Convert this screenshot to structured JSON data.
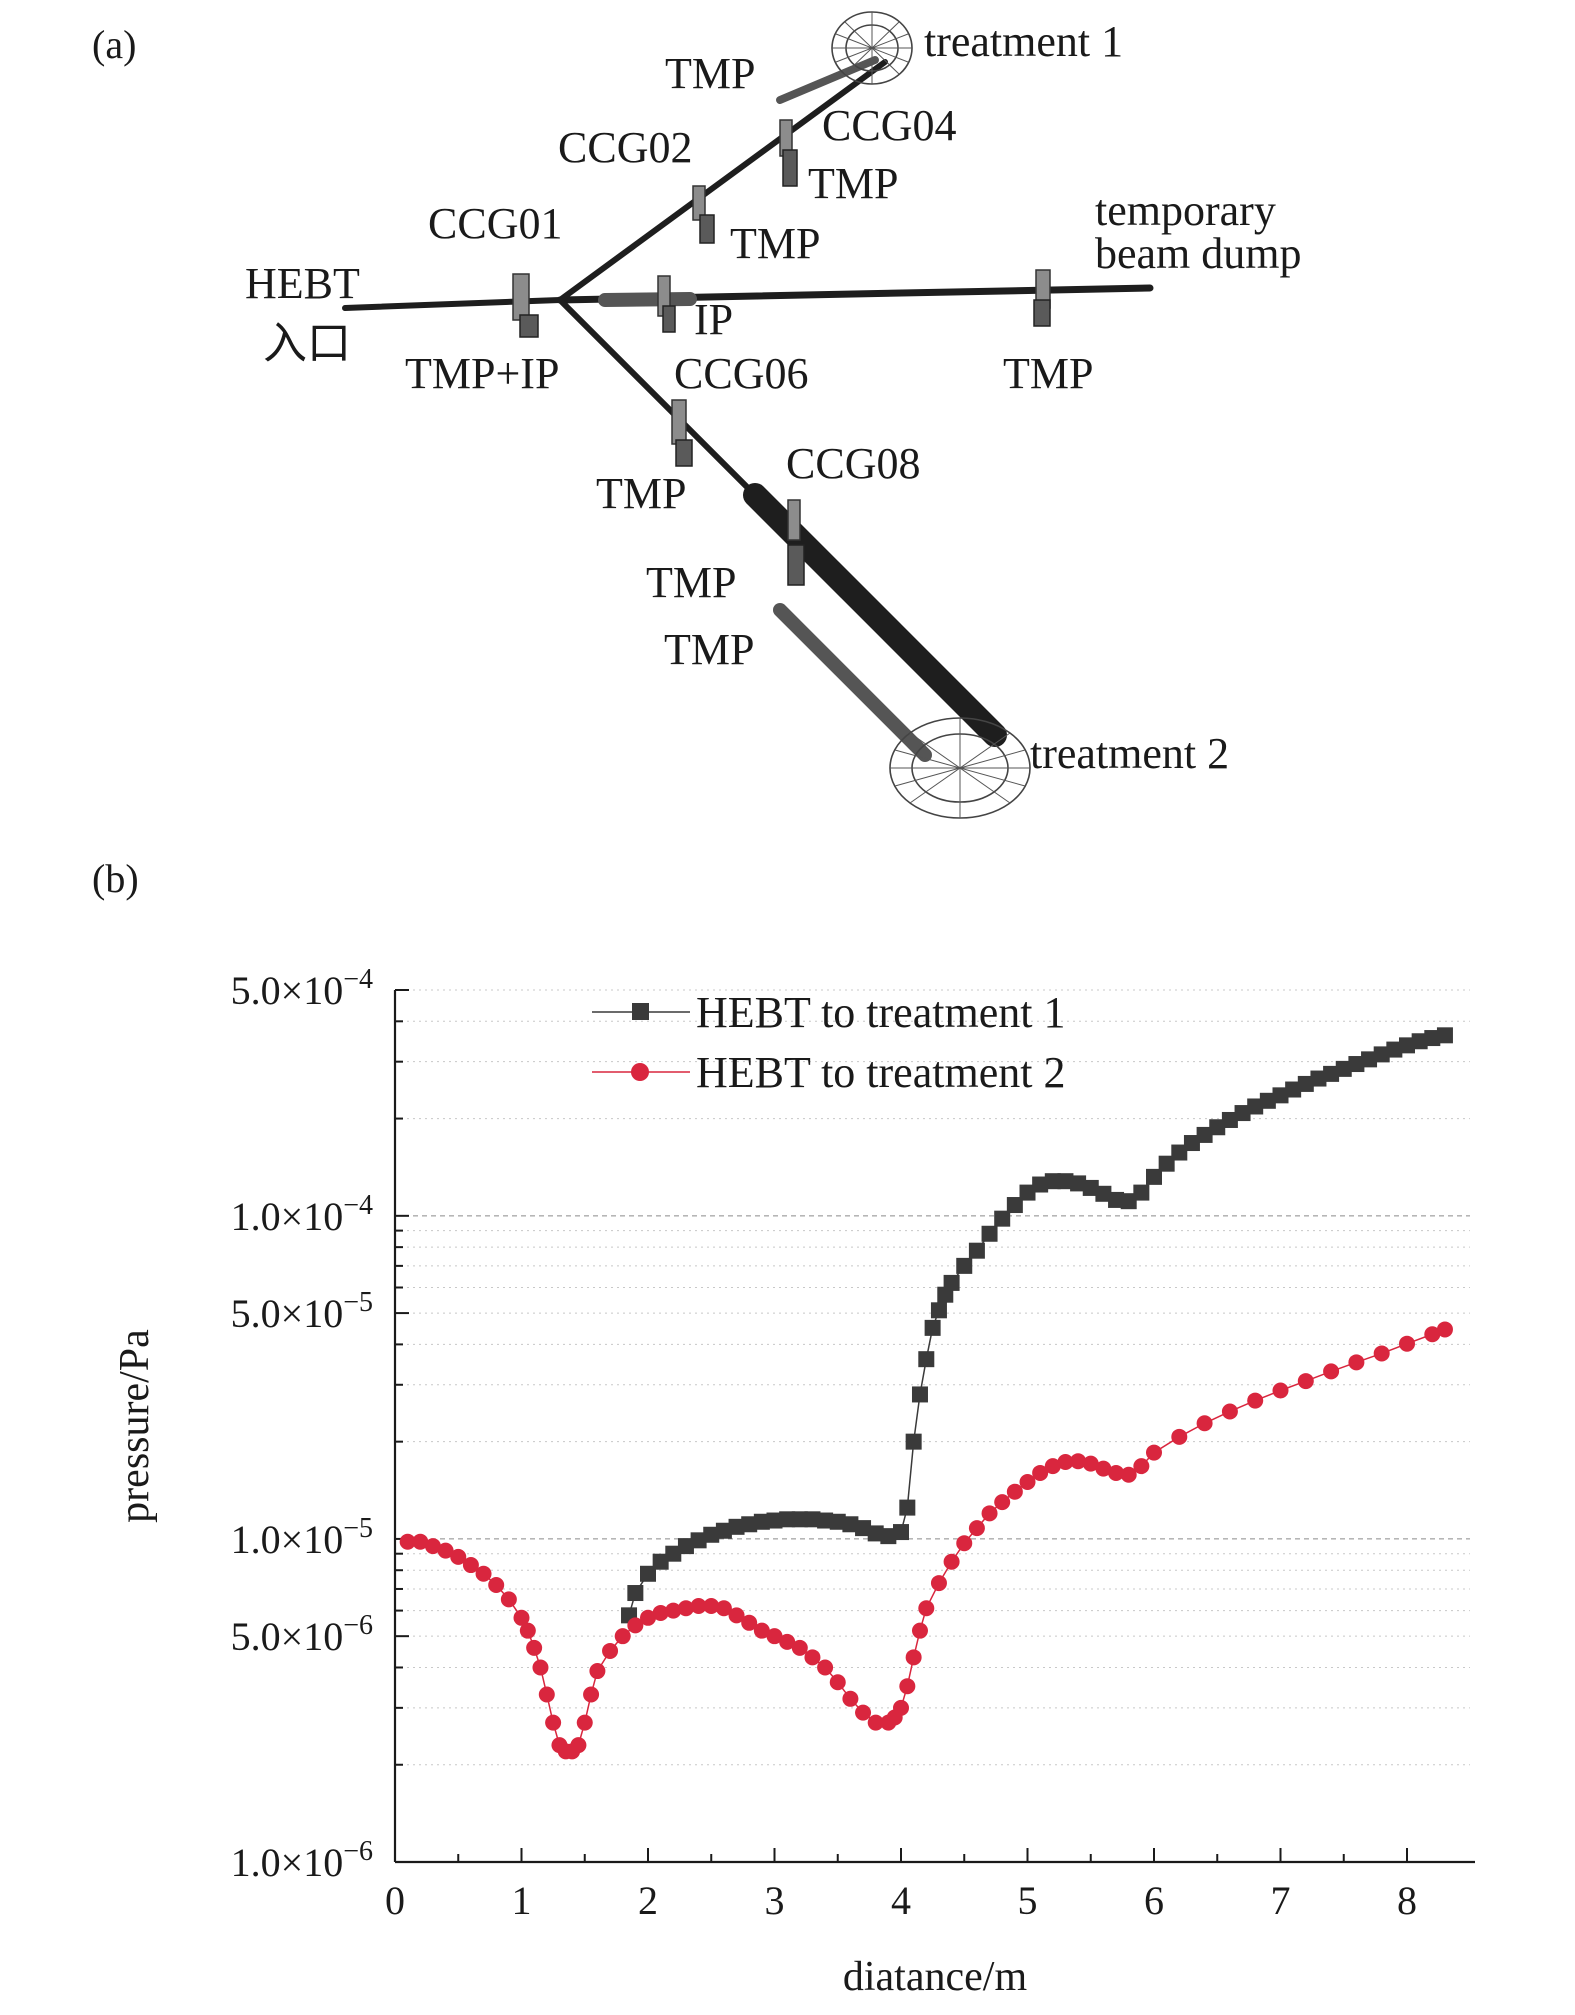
{
  "panel_a": {
    "letter": "(a)",
    "labels": {
      "treatment1": "treatment 1",
      "tmp_t1": "TMP",
      "ccg04": "CCG04",
      "ccg02": "CCG02",
      "tmp_ccg04": "TMP",
      "ccg01": "CCG01",
      "tmp_ccg02": "TMP",
      "temporary": "temporary",
      "beam_dump": "beam dump",
      "hebt": "HEBT",
      "entrance": "入口",
      "ip": "IP",
      "tmp_ip": "TMP+IP",
      "ccg06": "CCG06",
      "tmp_dump": "TMP",
      "tmp_ccg06": "TMP",
      "ccg08": "CCG08",
      "tmp_ccg08": "TMP",
      "tmp_t2": "TMP",
      "treatment2": "treatment 2"
    }
  },
  "panel_b": {
    "letter": "(b)"
  },
  "chart_data": {
    "type": "scatter",
    "title": "",
    "xlabel": "diatance/m",
    "ylabel": "pressure/Pa",
    "x_ticks": [
      "0",
      "1",
      "2",
      "3",
      "4",
      "5",
      "6",
      "7",
      "8"
    ],
    "y_ticks": [
      {
        "value": 1e-06,
        "label": "1.0×10",
        "exp": "−6"
      },
      {
        "value": 5e-06,
        "label": "5.0×10",
        "exp": "−6"
      },
      {
        "value": 1e-05,
        "label": "1.0×10",
        "exp": "−5"
      },
      {
        "value": 5e-05,
        "label": "5.0×10",
        "exp": "−5"
      },
      {
        "value": 0.0001,
        "label": "1.0×10",
        "exp": "−4"
      },
      {
        "value": 0.0005,
        "label": "5.0×10",
        "exp": "−4"
      }
    ],
    "xlim": [
      0,
      8.5
    ],
    "ylim": [
      1e-06,
      0.0005
    ],
    "yscale": "log",
    "grid": "dashed horizontal at 1e-5 and 1e-4, dotted minor",
    "legend_position": "top-center",
    "series": [
      {
        "name": "HEBT to treatment 1",
        "color": "#3a3a3a",
        "marker": "square",
        "x": [
          1.85,
          1.9,
          2.0,
          2.1,
          2.2,
          2.3,
          2.4,
          2.5,
          2.6,
          2.7,
          2.8,
          2.9,
          3.0,
          3.1,
          3.2,
          3.3,
          3.4,
          3.5,
          3.6,
          3.7,
          3.8,
          3.9,
          4.0,
          4.05,
          4.1,
          4.15,
          4.2,
          4.25,
          4.3,
          4.35,
          4.4,
          4.5,
          4.6,
          4.7,
          4.8,
          4.9,
          5.0,
          5.1,
          5.2,
          5.3,
          5.4,
          5.5,
          5.6,
          5.7,
          5.8,
          5.9,
          6.0,
          6.1,
          6.2,
          6.3,
          6.4,
          6.5,
          6.6,
          6.7,
          6.8,
          6.9,
          7.0,
          7.1,
          7.2,
          7.3,
          7.4,
          7.5,
          7.6,
          7.7,
          7.8,
          7.9,
          8.0,
          8.1,
          8.2,
          8.3
        ],
        "y": [
          5.8e-06,
          6.8e-06,
          7.8e-06,
          8.5e-06,
          9e-06,
          9.5e-06,
          9.9e-06,
          1.03e-05,
          1.06e-05,
          1.09e-05,
          1.11e-05,
          1.13e-05,
          1.14e-05,
          1.15e-05,
          1.15e-05,
          1.15e-05,
          1.14e-05,
          1.13e-05,
          1.11e-05,
          1.08e-05,
          1.04e-05,
          1.02e-05,
          1.05e-05,
          1.25e-05,
          2e-05,
          2.8e-05,
          3.6e-05,
          4.5e-05,
          5.1e-05,
          5.7e-05,
          6.2e-05,
          7e-05,
          7.8e-05,
          8.8e-05,
          9.8e-05,
          0.000108,
          0.000118,
          0.000125,
          0.000128,
          0.000128,
          0.000126,
          0.000122,
          0.000117,
          0.000112,
          0.000111,
          0.000118,
          0.000132,
          0.000145,
          0.000157,
          0.000168,
          0.000178,
          0.000188,
          0.000198,
          0.000208,
          0.000218,
          0.000227,
          0.000236,
          0.000246,
          0.000256,
          0.000266,
          0.000275,
          0.000285,
          0.000295,
          0.000305,
          0.000316,
          0.000327,
          0.000337,
          0.000347,
          0.000355,
          0.000362
        ]
      },
      {
        "name": "HEBT to treatment 2",
        "color": "#d9263e",
        "marker": "circle",
        "x": [
          0.1,
          0.2,
          0.3,
          0.4,
          0.5,
          0.6,
          0.7,
          0.8,
          0.9,
          1.0,
          1.05,
          1.1,
          1.15,
          1.2,
          1.25,
          1.3,
          1.35,
          1.4,
          1.45,
          1.5,
          1.55,
          1.6,
          1.7,
          1.8,
          1.9,
          2.0,
          2.1,
          2.2,
          2.3,
          2.4,
          2.5,
          2.6,
          2.7,
          2.8,
          2.9,
          3.0,
          3.1,
          3.2,
          3.3,
          3.4,
          3.5,
          3.6,
          3.7,
          3.8,
          3.9,
          3.95,
          4.0,
          4.05,
          4.1,
          4.15,
          4.2,
          4.3,
          4.4,
          4.5,
          4.6,
          4.7,
          4.8,
          4.9,
          5.0,
          5.1,
          5.2,
          5.3,
          5.4,
          5.5,
          5.6,
          5.7,
          5.8,
          5.9,
          6.0,
          6.2,
          6.4,
          6.6,
          6.8,
          7.0,
          7.2,
          7.4,
          7.6,
          7.8,
          8.0,
          8.2,
          8.3
        ],
        "y": [
          9.8e-06,
          9.8e-06,
          9.5e-06,
          9.2e-06,
          8.8e-06,
          8.3e-06,
          7.8e-06,
          7.2e-06,
          6.5e-06,
          5.7e-06,
          5.2e-06,
          4.6e-06,
          4e-06,
          3.3e-06,
          2.7e-06,
          2.3e-06,
          2.2e-06,
          2.2e-06,
          2.3e-06,
          2.7e-06,
          3.3e-06,
          3.9e-06,
          4.5e-06,
          5e-06,
          5.4e-06,
          5.7e-06,
          5.9e-06,
          6e-06,
          6.1e-06,
          6.2e-06,
          6.2e-06,
          6.1e-06,
          5.8e-06,
          5.5e-06,
          5.2e-06,
          5e-06,
          4.8e-06,
          4.6e-06,
          4.3e-06,
          4e-06,
          3.6e-06,
          3.2e-06,
          2.9e-06,
          2.7e-06,
          2.7e-06,
          2.8e-06,
          3e-06,
          3.5e-06,
          4.3e-06,
          5.2e-06,
          6.1e-06,
          7.3e-06,
          8.5e-06,
          9.7e-06,
          1.08e-05,
          1.2e-05,
          1.3e-05,
          1.4e-05,
          1.5e-05,
          1.6e-05,
          1.68e-05,
          1.73e-05,
          1.74e-05,
          1.71e-05,
          1.65e-05,
          1.6e-05,
          1.58e-05,
          1.68e-05,
          1.85e-05,
          2.07e-05,
          2.28e-05,
          2.48e-05,
          2.68e-05,
          2.88e-05,
          3.08e-05,
          3.3e-05,
          3.52e-05,
          3.75e-05,
          4.02e-05,
          4.3e-05,
          4.45e-05
        ]
      }
    ]
  }
}
